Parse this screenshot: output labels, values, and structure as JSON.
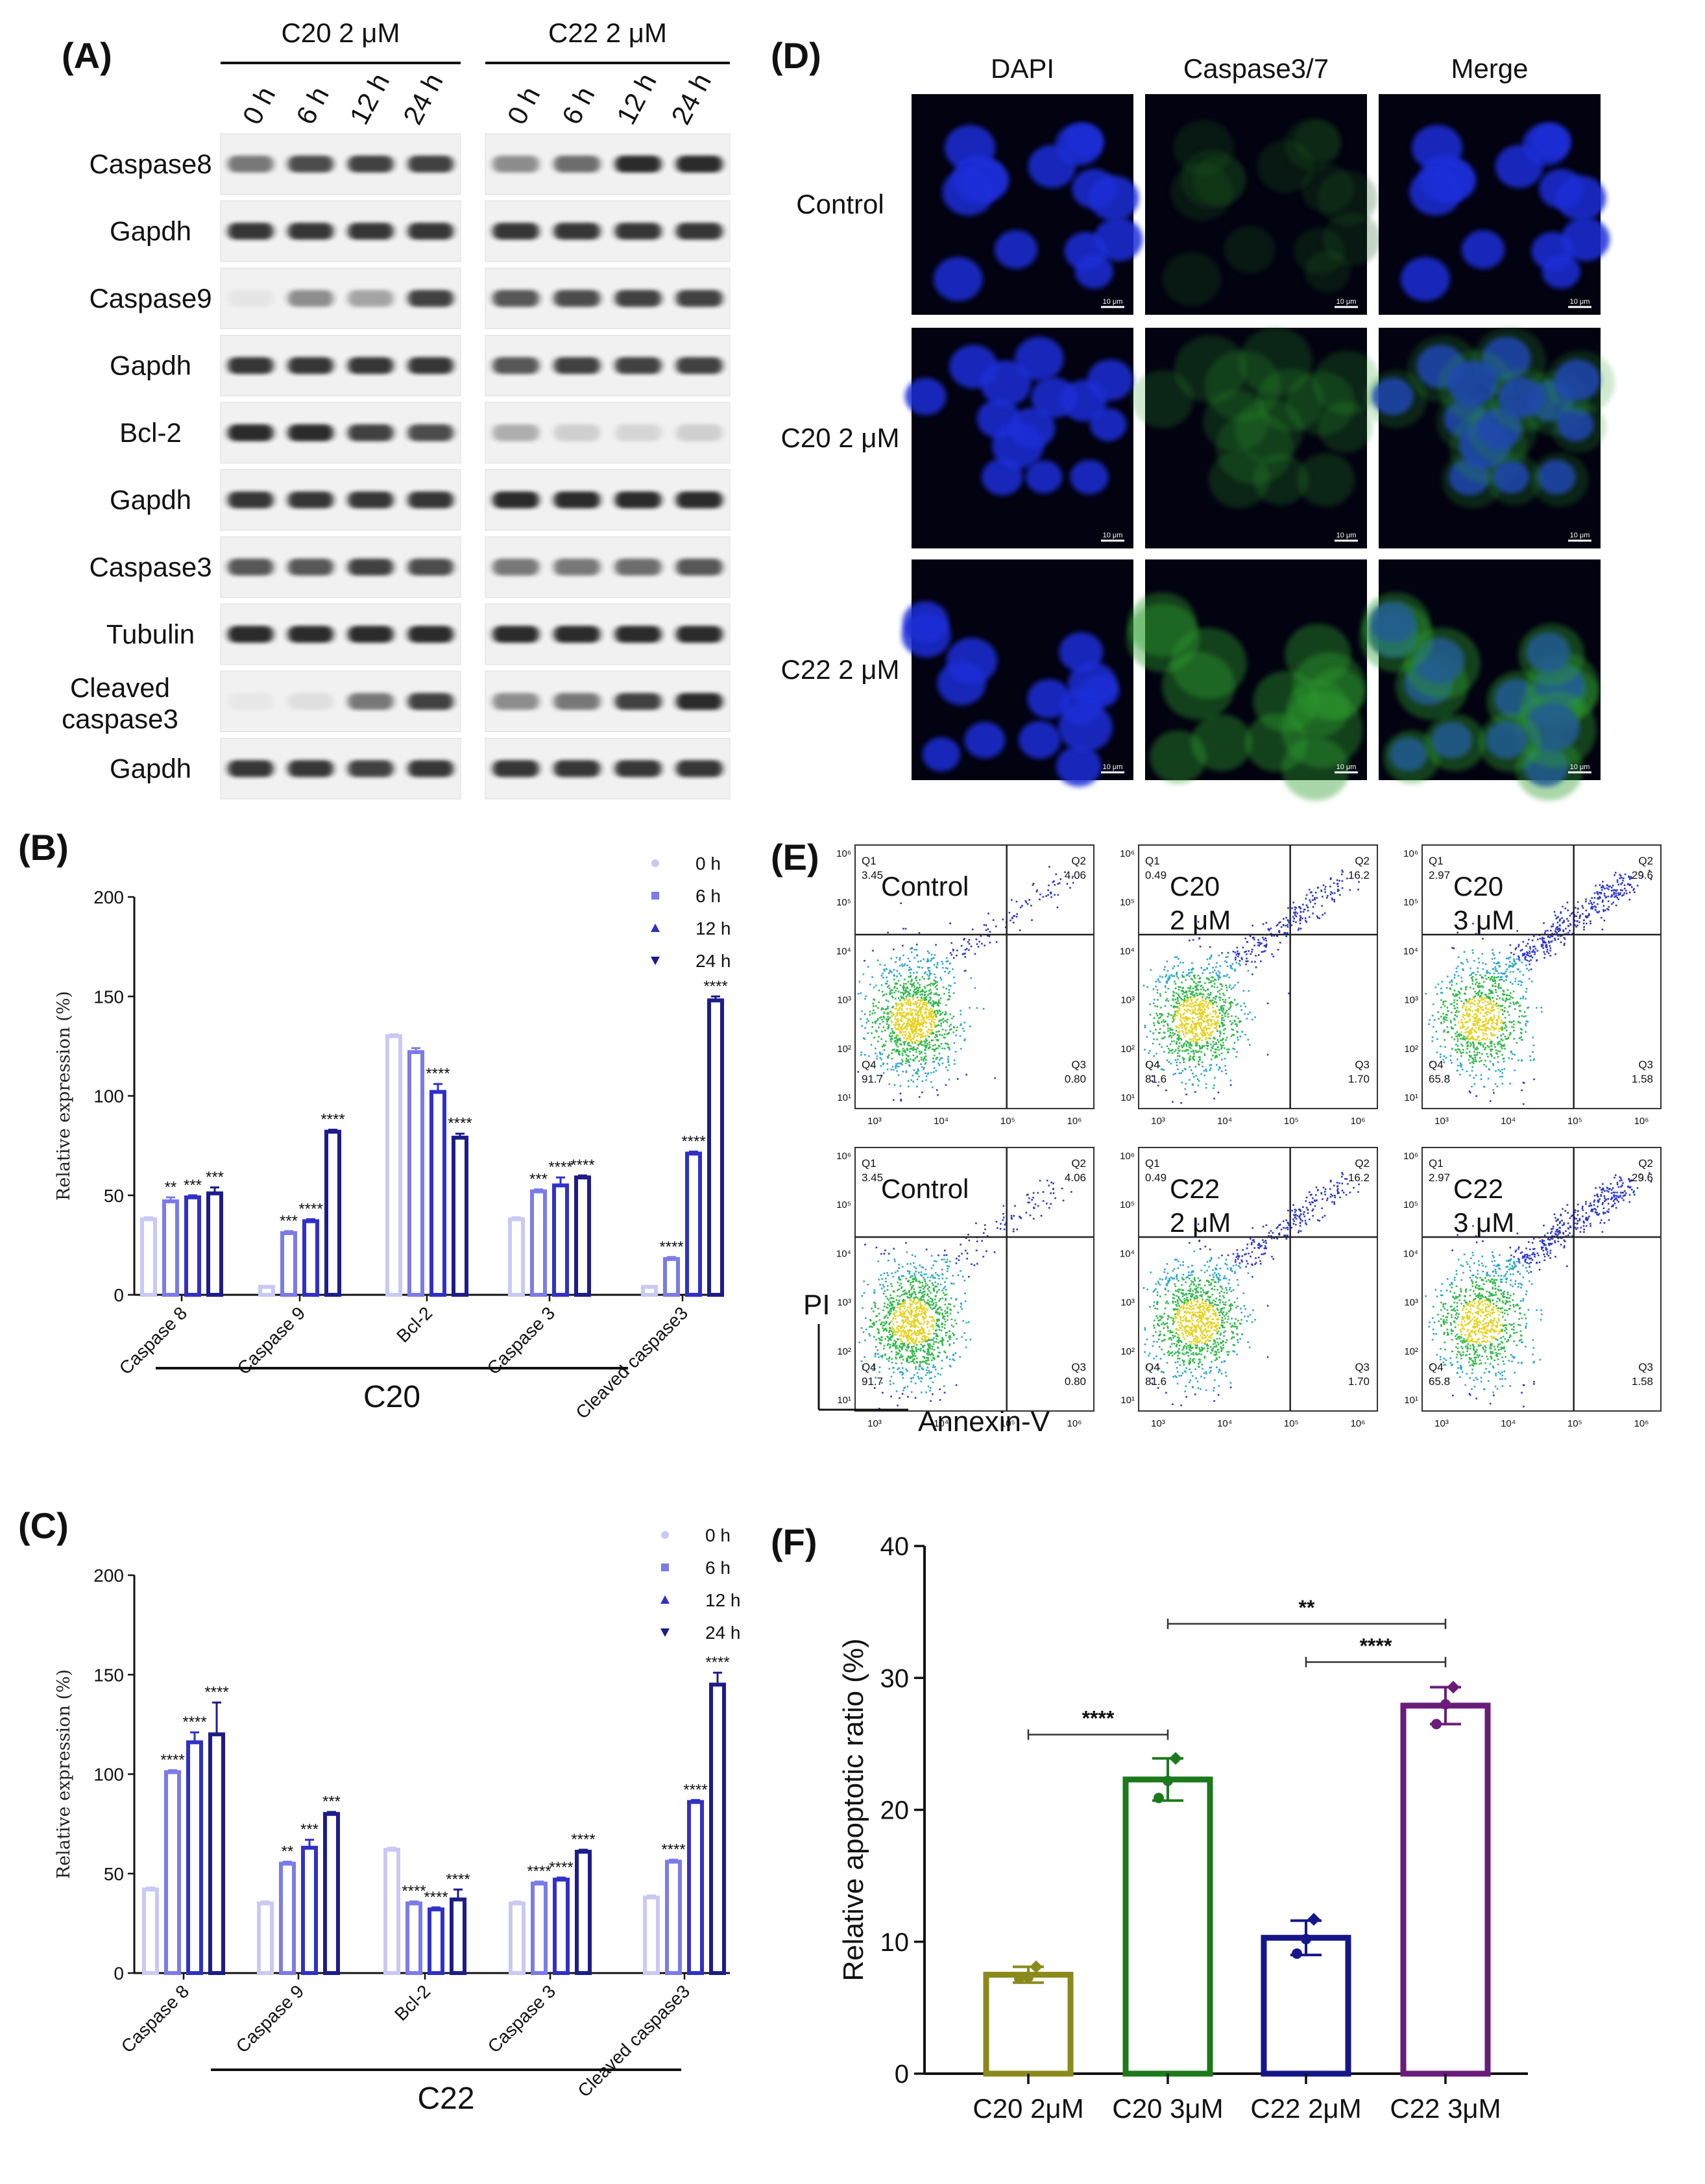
{
  "panel_labels": {
    "A": "(A)",
    "B": "(B)",
    "C": "(C)",
    "D": "(D)",
    "E": "(E)",
    "F": "(F)"
  },
  "panel_a": {
    "groups": [
      "C20 2 μM",
      "C22 2 μM"
    ],
    "timepoints": [
      "0 h",
      "6 h",
      "12 h",
      "24 h"
    ],
    "rows": [
      {
        "label": "Caspase8",
        "lines": [
          "Caspase8"
        ],
        "c20": [
          0.55,
          0.75,
          0.8,
          0.8
        ],
        "c22": [
          0.45,
          0.6,
          0.9,
          0.9
        ]
      },
      {
        "label": "Gapdh",
        "lines": [
          "Gapdh"
        ],
        "c20": [
          0.85,
          0.85,
          0.85,
          0.85
        ],
        "c22": [
          0.85,
          0.85,
          0.85,
          0.85
        ]
      },
      {
        "label": "Caspase9",
        "lines": [
          "Caspase9"
        ],
        "c20": [
          0.05,
          0.45,
          0.35,
          0.8
        ],
        "c22": [
          0.7,
          0.75,
          0.8,
          0.8
        ]
      },
      {
        "label": "Gapdh",
        "lines": [
          "Gapdh"
        ],
        "c20": [
          0.85,
          0.85,
          0.85,
          0.85
        ],
        "c22": [
          0.7,
          0.8,
          0.8,
          0.8
        ]
      },
      {
        "label": "Bcl-2",
        "lines": [
          "Bcl-2"
        ],
        "c20": [
          0.9,
          0.9,
          0.8,
          0.75
        ],
        "c22": [
          0.3,
          0.15,
          0.12,
          0.15
        ]
      },
      {
        "label": "Gapdh",
        "lines": [
          "Gapdh"
        ],
        "c20": [
          0.85,
          0.85,
          0.85,
          0.85
        ],
        "c22": [
          0.9,
          0.9,
          0.9,
          0.9
        ]
      },
      {
        "label": "Caspase3",
        "lines": [
          "Caspase3"
        ],
        "c20": [
          0.7,
          0.7,
          0.8,
          0.75
        ],
        "c22": [
          0.55,
          0.55,
          0.6,
          0.7
        ]
      },
      {
        "label": "Tubulin",
        "lines": [
          "Tubulin"
        ],
        "c20": [
          0.9,
          0.9,
          0.9,
          0.9
        ],
        "c22": [
          0.9,
          0.9,
          0.9,
          0.9
        ]
      },
      {
        "label": "Cleaved caspase3",
        "lines": [
          "Cleaved",
          "caspase3"
        ],
        "c20": [
          0.03,
          0.08,
          0.55,
          0.8
        ],
        "c22": [
          0.45,
          0.55,
          0.8,
          0.9
        ]
      },
      {
        "label": "Gapdh",
        "lines": [
          "Gapdh"
        ],
        "c20": [
          0.85,
          0.85,
          0.8,
          0.85
        ],
        "c22": [
          0.85,
          0.85,
          0.85,
          0.85
        ]
      }
    ]
  },
  "panel_d": {
    "columns": [
      "DAPI",
      "Caspase3/7",
      "Merge"
    ],
    "rows": [
      "Control",
      "C20 2 μM",
      "C22 2 μM"
    ],
    "scale_bar": "10 μm"
  },
  "panel_e": {
    "plots": [
      {
        "label": [
          "Control"
        ],
        "q1": "3.45",
        "q2": "4.06",
        "q3": "0.80",
        "q4": "91.7"
      },
      {
        "label": [
          "C20",
          "2 μM"
        ],
        "q1": "0.49",
        "q2": "16.2",
        "q3": "1.70",
        "q4": "81.6"
      },
      {
        "label": [
          "C20",
          "3 μM"
        ],
        "q1": "2.97",
        "q2": "29.6",
        "q3": "1.58",
        "q4": "65.8"
      },
      {
        "label": [
          "Control"
        ],
        "q1": "3.45",
        "q2": "4.06",
        "q3": "0.80",
        "q4": "91.7"
      },
      {
        "label": [
          "C22",
          "2 μM"
        ],
        "q1": "0.49",
        "q2": "16.2",
        "q3": "1.70",
        "q4": "81.6"
      },
      {
        "label": [
          "C22",
          "3 μM"
        ],
        "q1": "2.97",
        "q2": "29.6",
        "q3": "1.58",
        "q4": "65.8"
      }
    ],
    "quadrant_names": [
      "Q1",
      "Q2",
      "Q3",
      "Q4"
    ],
    "x_ticks": [
      "10³",
      "10⁴",
      "10⁵",
      "10⁶"
    ],
    "y_ticks": [
      "10⁶",
      "10⁵",
      "10⁴",
      "10³",
      "10²",
      "10¹"
    ],
    "x_axis_label": "Annexin-V",
    "y_axis_label": "PI"
  },
  "chart_data": [
    {
      "panel": "B",
      "type": "bar",
      "ylabel": "Relative expression (%)",
      "group_label": "C20",
      "ylim": [
        0,
        200
      ],
      "yticks": [
        0,
        50,
        100,
        150,
        200
      ],
      "categories": [
        "Caspase 8",
        "Caspase 9",
        "Bcl-2",
        "Caspase 3",
        "Cleaved caspase3"
      ],
      "series": [
        {
          "name": "0 h",
          "values": [
            38,
            4,
            130,
            38,
            4
          ],
          "errors": [
            1,
            0.5,
            1,
            1,
            0.5
          ],
          "color": "#c9c9f4"
        },
        {
          "name": "6 h",
          "values": [
            47,
            31,
            122,
            52,
            18
          ],
          "errors": [
            2,
            1,
            2,
            1,
            1
          ],
          "color": "#7b7bea"
        },
        {
          "name": "12 h",
          "values": [
            49,
            37,
            102,
            55,
            71
          ],
          "errors": [
            1,
            1,
            4,
            4,
            1
          ],
          "color": "#3030c8"
        },
        {
          "name": "24 h",
          "values": [
            51,
            82,
            79,
            59,
            148
          ],
          "errors": [
            3,
            1,
            2,
            1,
            2
          ],
          "color": "#1c1c8a"
        }
      ],
      "significance": [
        [
          "",
          "**",
          "***",
          "***"
        ],
        [
          "",
          "***",
          "****",
          "****"
        ],
        [
          "",
          "",
          "****",
          "****"
        ],
        [
          "",
          "***",
          "****",
          "****"
        ],
        [
          "",
          "****",
          "****",
          "****"
        ]
      ],
      "legend_position": "top-right"
    },
    {
      "panel": "C",
      "type": "bar",
      "ylabel": "Relative expression (%)",
      "group_label": "C22",
      "ylim": [
        0,
        200
      ],
      "yticks": [
        0,
        50,
        100,
        150,
        200
      ],
      "categories": [
        "Caspase 8",
        "Caspase 9",
        "Bcl-2",
        "Caspase 3",
        "Cleaved caspase3"
      ],
      "series": [
        {
          "name": "0 h",
          "values": [
            42,
            35,
            62,
            35,
            38
          ],
          "errors": [
            1,
            1,
            1,
            1,
            1
          ],
          "color": "#c9c9f4"
        },
        {
          "name": "6 h",
          "values": [
            101,
            55,
            35,
            45,
            56
          ],
          "errors": [
            1,
            1,
            1,
            1,
            1
          ],
          "color": "#7b7bea"
        },
        {
          "name": "12 h",
          "values": [
            116,
            63,
            32,
            47,
            86
          ],
          "errors": [
            5,
            4,
            1,
            1,
            1
          ],
          "color": "#3030c8"
        },
        {
          "name": "24 h",
          "values": [
            120,
            80,
            37,
            61,
            145
          ],
          "errors": [
            16,
            1,
            5,
            1,
            6
          ],
          "color": "#1c1c8a"
        }
      ],
      "significance": [
        [
          "",
          "****",
          "****",
          "****"
        ],
        [
          "",
          "**",
          "***",
          "***"
        ],
        [
          "",
          "****",
          "****",
          "****"
        ],
        [
          "",
          "****",
          "****",
          "****"
        ],
        [
          "",
          "****",
          "****",
          "****"
        ]
      ],
      "legend_position": "top-right"
    },
    {
      "panel": "F",
      "type": "bar",
      "ylabel": "Relative apoptotic ratio (%)",
      "ylim": [
        0,
        40
      ],
      "yticks": [
        0,
        10,
        20,
        30,
        40
      ],
      "categories": [
        "C20 2μM",
        "C20 3μM",
        "C22 2μM",
        "C22 3μM"
      ],
      "values": [
        7.5,
        22.3,
        10.3,
        27.9
      ],
      "errors": [
        0.6,
        1.6,
        1.3,
        1.4
      ],
      "points": [
        [
          7.2,
          8.1,
          7.3
        ],
        [
          20.9,
          23.9,
          22.2
        ],
        [
          9.1,
          11.7,
          10.2
        ],
        [
          26.5,
          29.3,
          28.0
        ]
      ],
      "colors": [
        "#8a8a1c",
        "#1c7a1c",
        "#16168a",
        "#6a1c7a"
      ],
      "comparisons": [
        {
          "from": 0,
          "to": 1,
          "y": 25.7,
          "label": "****"
        },
        {
          "from": 1,
          "to": 3,
          "y": 34.1,
          "label": "**"
        },
        {
          "from": 2,
          "to": 3,
          "y": 31.2,
          "label": "****"
        }
      ]
    }
  ]
}
